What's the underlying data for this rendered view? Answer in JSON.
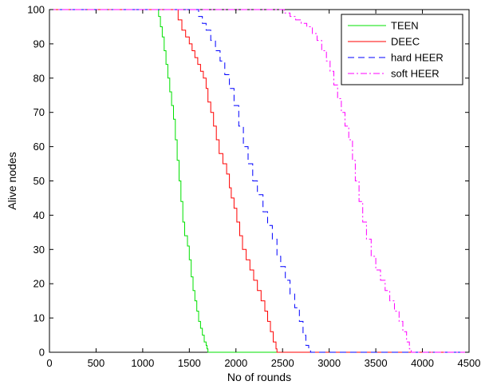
{
  "chart_data": {
    "type": "line",
    "title": "",
    "xlabel": "No of rounds",
    "ylabel": "Alive nodes",
    "xlim": [
      0,
      4500
    ],
    "ylim": [
      0,
      100
    ],
    "xticks": [
      0,
      500,
      1000,
      1500,
      2000,
      2500,
      3000,
      3500,
      4000,
      4500
    ],
    "yticks": [
      0,
      10,
      20,
      30,
      40,
      50,
      60,
      70,
      80,
      90,
      100
    ],
    "grid": false,
    "legend_position": "top-right",
    "series": [
      {
        "name": "TEEN",
        "color": "#00e000",
        "dash": "solid",
        "x": [
          0,
          1150,
          1170,
          1190,
          1210,
          1230,
          1250,
          1270,
          1290,
          1310,
          1330,
          1350,
          1370,
          1390,
          1410,
          1430,
          1450,
          1480,
          1500,
          1520,
          1540,
          1560,
          1580,
          1600,
          1620,
          1640,
          1660,
          1680,
          1690,
          1700,
          4500
        ],
        "y": [
          100,
          100,
          98,
          95,
          92,
          88,
          84,
          80,
          76,
          72,
          68,
          62,
          56,
          50,
          44,
          38,
          34,
          31,
          27,
          22,
          18,
          15,
          12,
          9,
          7,
          5,
          3,
          2,
          1,
          0,
          0
        ]
      },
      {
        "name": "DEEC",
        "color": "#ff0000",
        "dash": "solid",
        "x": [
          0,
          1360,
          1380,
          1420,
          1460,
          1500,
          1530,
          1560,
          1590,
          1620,
          1650,
          1680,
          1700,
          1730,
          1760,
          1790,
          1820,
          1860,
          1900,
          1930,
          1950,
          1980,
          2010,
          2040,
          2070,
          2110,
          2150,
          2190,
          2230,
          2270,
          2310,
          2340,
          2370,
          2400,
          2430,
          2440,
          2450,
          4500
        ],
        "y": [
          100,
          100,
          97,
          94,
          92,
          90,
          88,
          86,
          84,
          82,
          80,
          77,
          73,
          70,
          66,
          62,
          58,
          55,
          52,
          48,
          45,
          42,
          38,
          34,
          30,
          27,
          24,
          21,
          18,
          15,
          12,
          9,
          6,
          3,
          1,
          0,
          0,
          0
        ]
      },
      {
        "name": "hard HEER",
        "color": "#0000ff",
        "dash": "dashed",
        "x": [
          0,
          1570,
          1600,
          1640,
          1680,
          1730,
          1780,
          1830,
          1880,
          1930,
          1980,
          2030,
          2080,
          2130,
          2180,
          2230,
          2290,
          2340,
          2390,
          2440,
          2480,
          2530,
          2580,
          2630,
          2680,
          2720,
          2750,
          2780,
          2800,
          4500
        ],
        "y": [
          100,
          100,
          98,
          96,
          94,
          91,
          88,
          85,
          81,
          77,
          72,
          66,
          60,
          55,
          50,
          46,
          41,
          37,
          33,
          28,
          25,
          21,
          17,
          13,
          9,
          5,
          2,
          1,
          0,
          0
        ]
      },
      {
        "name": "soft HEER",
        "color": "#ff00ff",
        "dash": "dashdot",
        "x": [
          0,
          2460,
          2520,
          2580,
          2640,
          2700,
          2760,
          2820,
          2870,
          2920,
          2970,
          3010,
          3050,
          3090,
          3130,
          3170,
          3210,
          3250,
          3280,
          3320,
          3360,
          3400,
          3450,
          3500,
          3550,
          3600,
          3650,
          3700,
          3750,
          3790,
          3830,
          3860,
          3880,
          4500
        ],
        "y": [
          100,
          100,
          99,
          98,
          97,
          96,
          95,
          93,
          91,
          88,
          85,
          82,
          78,
          74,
          70,
          66,
          62,
          56,
          50,
          44,
          38,
          33,
          28,
          24,
          21,
          18,
          15,
          12,
          9,
          6,
          3,
          1,
          0,
          0
        ]
      }
    ]
  }
}
